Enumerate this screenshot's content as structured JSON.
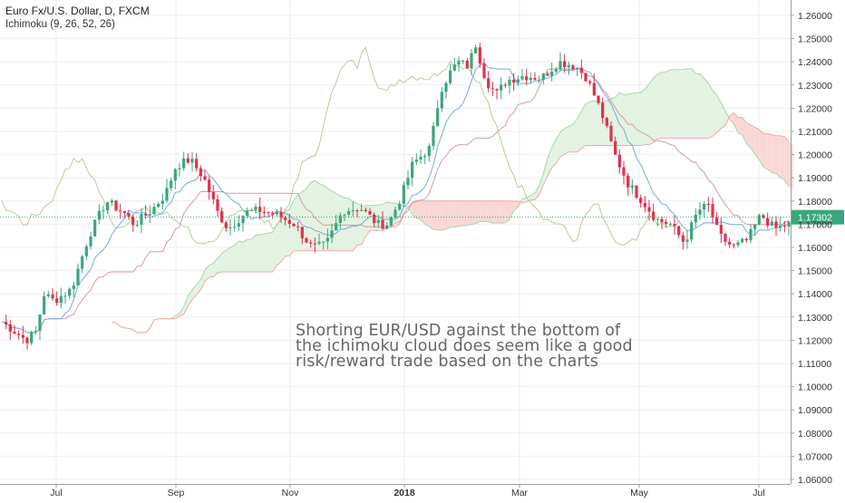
{
  "chart_data": {
    "type": "candlestick",
    "title": "Euro Fx/U.S. Dollar, D, FXCM",
    "indicator_label": "Ichimoku (9, 26, 52, 26)",
    "y_ticks": [
      "1.26000",
      "1.25000",
      "1.24000",
      "1.23000",
      "1.22000",
      "1.21000",
      "1.20000",
      "1.19000",
      "1.18000",
      "1.17000",
      "1.16000",
      "1.15000",
      "1.14000",
      "1.13000",
      "1.12000",
      "1.11000",
      "1.10000",
      "1.09000",
      "1.08000",
      "1.07000",
      "1.06000"
    ],
    "x_ticks": [
      "Jul",
      "Sep",
      "Nov",
      "2018",
      "Mar",
      "May",
      "Jul"
    ],
    "ylim": [
      1.0565,
      1.2665
    ],
    "last_price": "1.17302",
    "grid": true,
    "series": [
      {
        "name": "close",
        "x": [
          "2017-06",
          "2017-07",
          "2017-08",
          "2017-09",
          "2017-10",
          "2017-11",
          "2017-12",
          "2018-01",
          "2018-02",
          "2018-03",
          "2018-04",
          "2018-05",
          "2018-06",
          "2018-07"
        ],
        "values": [
          1.125,
          1.15,
          1.185,
          1.19,
          1.17,
          1.175,
          1.187,
          1.245,
          1.23,
          1.232,
          1.232,
          1.185,
          1.165,
          1.173
        ]
      }
    ],
    "colors": {
      "up": "#3aa77a",
      "down": "#e0314b",
      "tenkan": "#7aaad8",
      "kijun": "#d99aa7",
      "chikou": "#b7cf9c",
      "cloud_bull": "#e3f2e3",
      "cloud_bear": "#fad7d7",
      "last_price_bg": "#3aa77a"
    },
    "annotation": "Shorting EUR/USD against the bottom of the ichimoku cloud does seem like a good risk/reward trade based on the charts"
  }
}
